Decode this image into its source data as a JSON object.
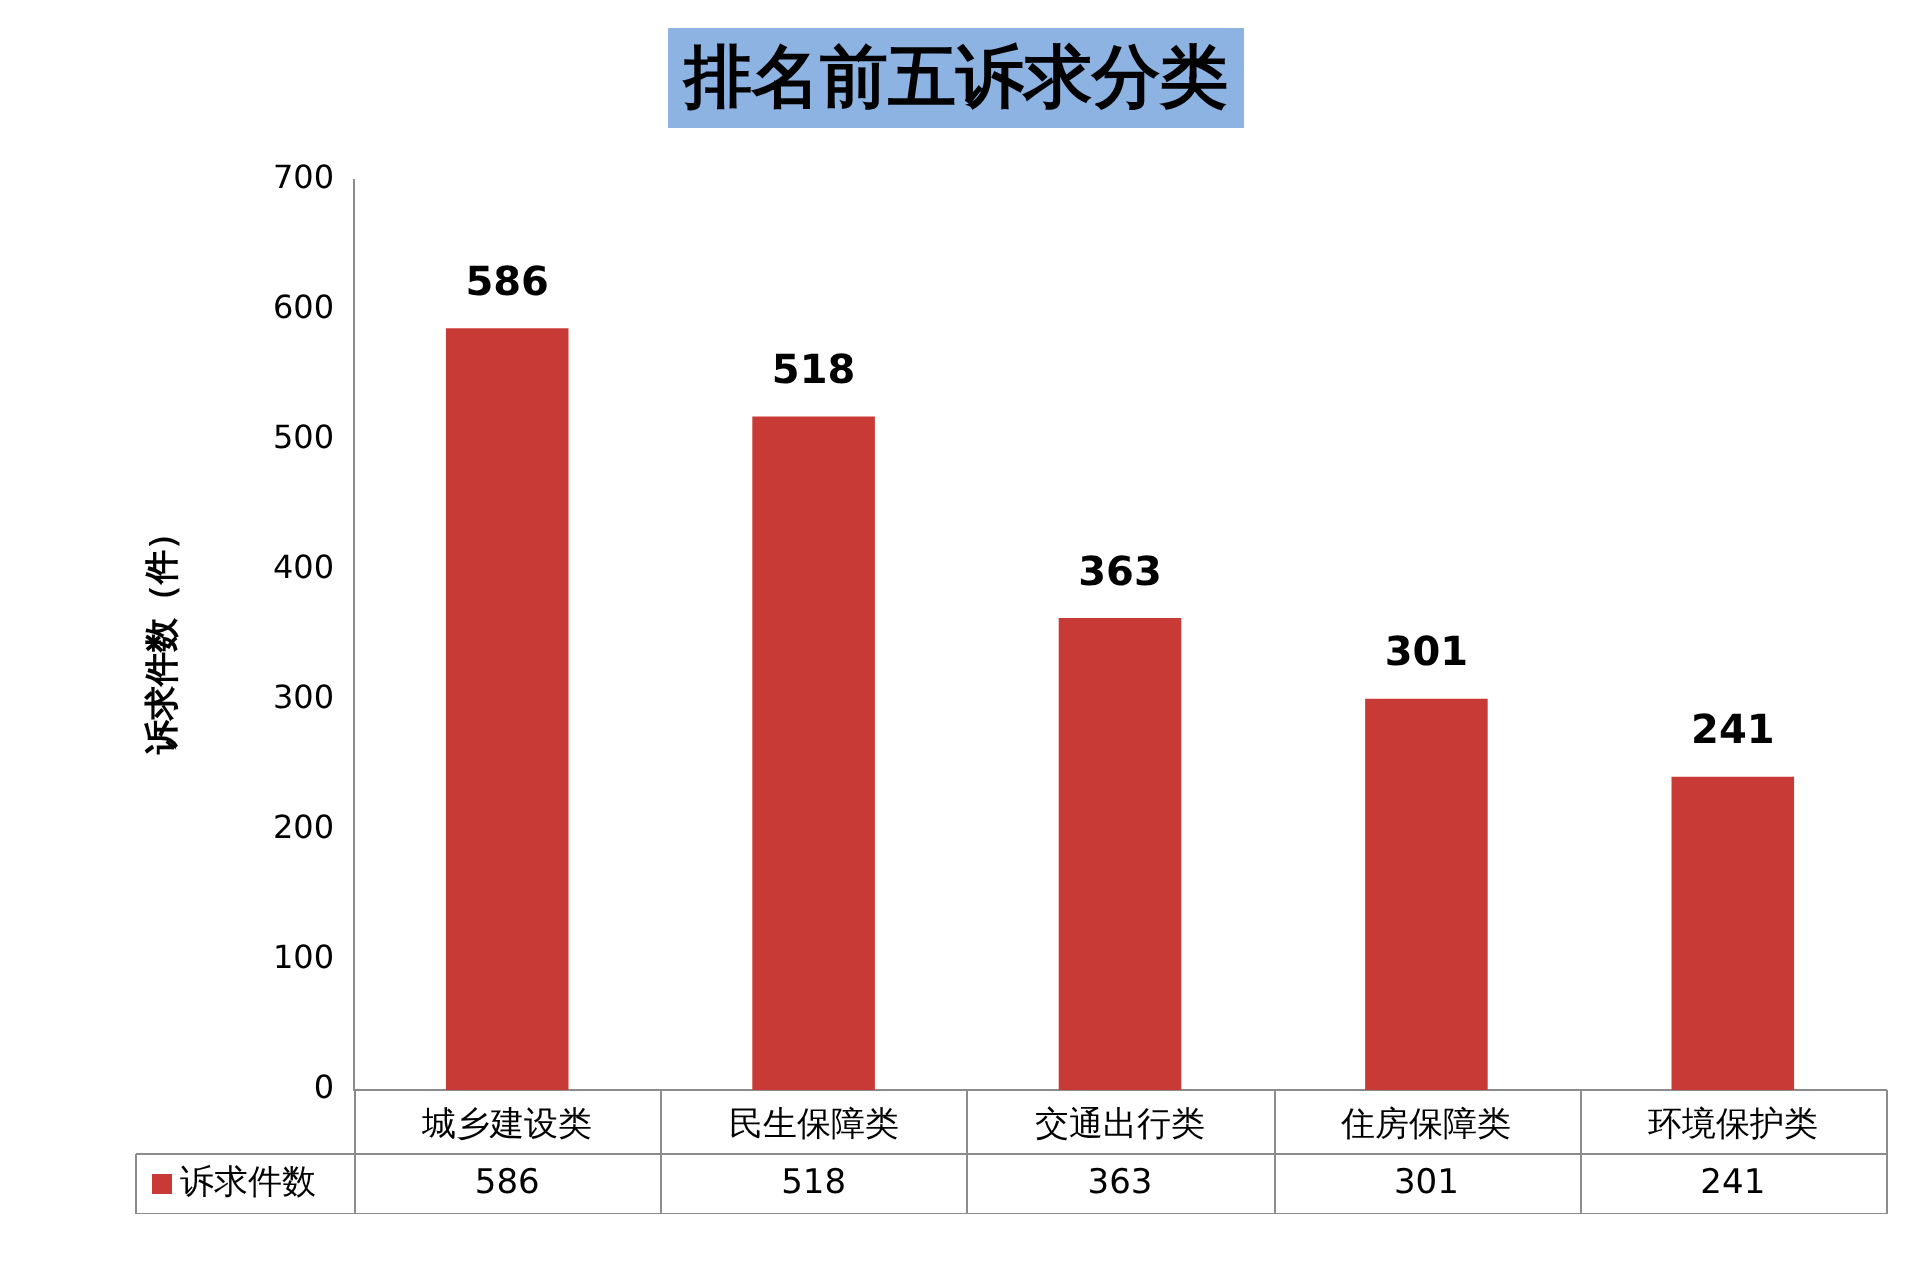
{
  "chart_data": {
    "type": "bar",
    "title": "排名前五诉求分类",
    "ylabel": "诉求件数（件）",
    "categories": [
      "城乡建设类",
      "民生保障类",
      "交通出行类",
      "住房保障类",
      "环境保护类"
    ],
    "series": [
      {
        "name": "诉求件数",
        "color": "#c83a36",
        "values": [
          586,
          518,
          363,
          301,
          241
        ],
        "value_labels": [
          "586",
          "518",
          "363",
          "301",
          "241"
        ]
      }
    ],
    "annotations": [
      "586",
      "518",
      "363",
      "301",
      "241"
    ],
    "ylim": [
      0,
      700
    ],
    "yticks": [
      0,
      100,
      200,
      300,
      400,
      500,
      600,
      700
    ],
    "grid": false
  }
}
